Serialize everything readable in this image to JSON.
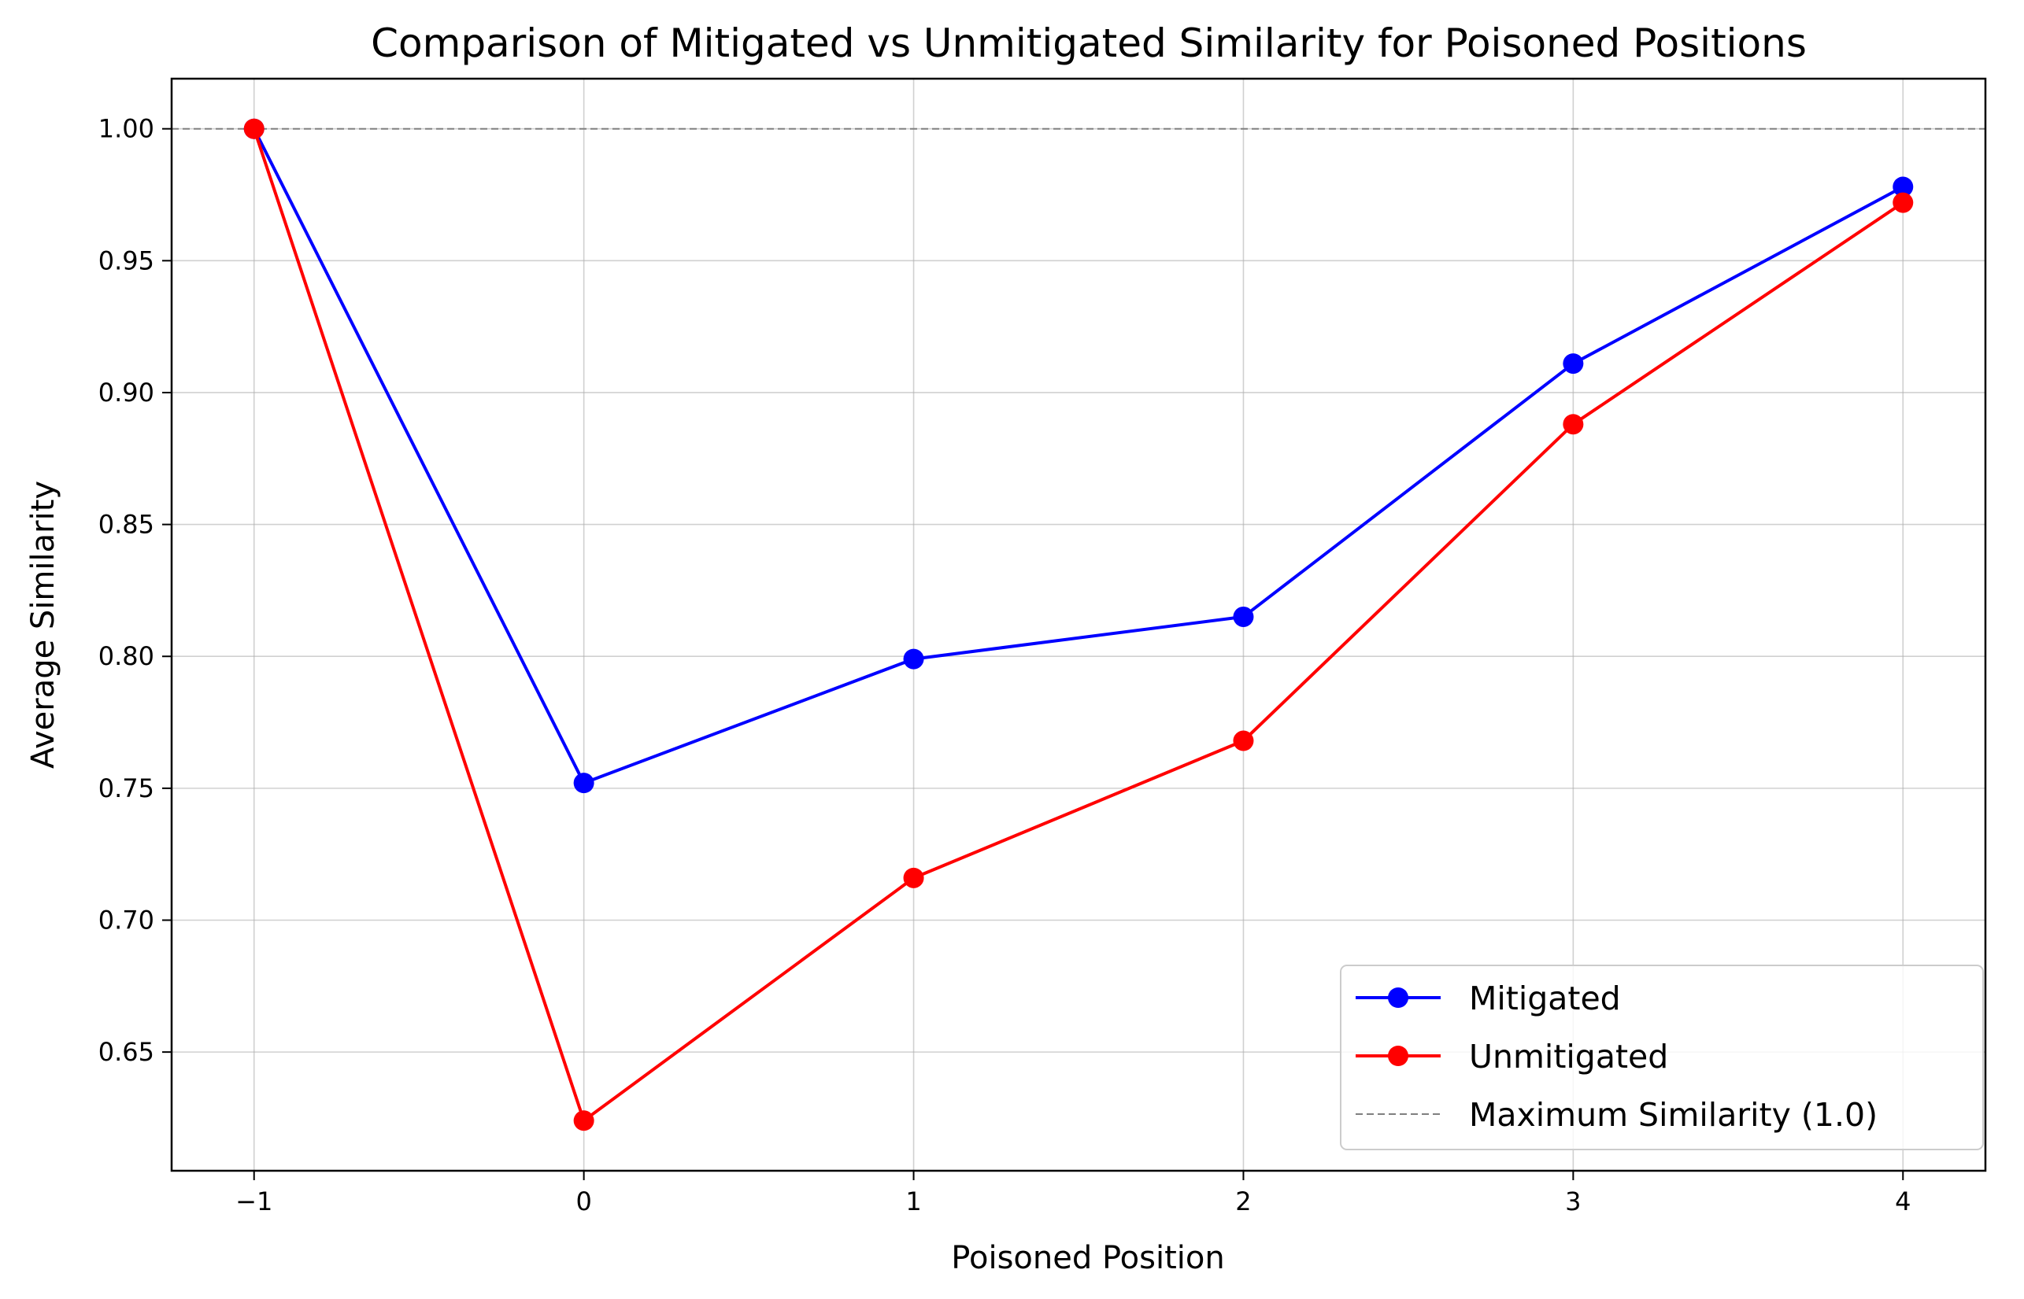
{
  "chart_data": {
    "type": "line",
    "title": "Comparison of Mitigated vs Unmitigated Similarity for Poisoned Positions",
    "xlabel": "Poisoned Position",
    "ylabel": "Average Similarity",
    "x": [
      -1,
      0,
      1,
      2,
      3,
      4
    ],
    "x_tick_labels": [
      "−1",
      "0",
      "1",
      "2",
      "3",
      "4"
    ],
    "y_ticks": [
      0.65,
      0.7,
      0.75,
      0.8,
      0.85,
      0.9,
      0.95,
      1.0
    ],
    "y_tick_labels": [
      "0.65",
      "0.70",
      "0.75",
      "0.80",
      "0.85",
      "0.90",
      "0.95",
      "1.00"
    ],
    "xlim": [
      -1.25,
      4.25
    ],
    "ylim": [
      0.605,
      1.019
    ],
    "grid": true,
    "legend_position": "lower-right",
    "series": [
      {
        "name": "Mitigated",
        "color": "#0000ff",
        "marker": "circle",
        "values": [
          1.0,
          0.752,
          0.799,
          0.815,
          0.911,
          0.978
        ]
      },
      {
        "name": "Unmitigated",
        "color": "#ff0000",
        "marker": "circle",
        "values": [
          1.0,
          0.624,
          0.716,
          0.768,
          0.888,
          0.972
        ]
      }
    ],
    "reference_line": {
      "name": "Maximum Similarity (1.0)",
      "value": 1.0,
      "color": "#808080",
      "style": "dashed"
    }
  }
}
